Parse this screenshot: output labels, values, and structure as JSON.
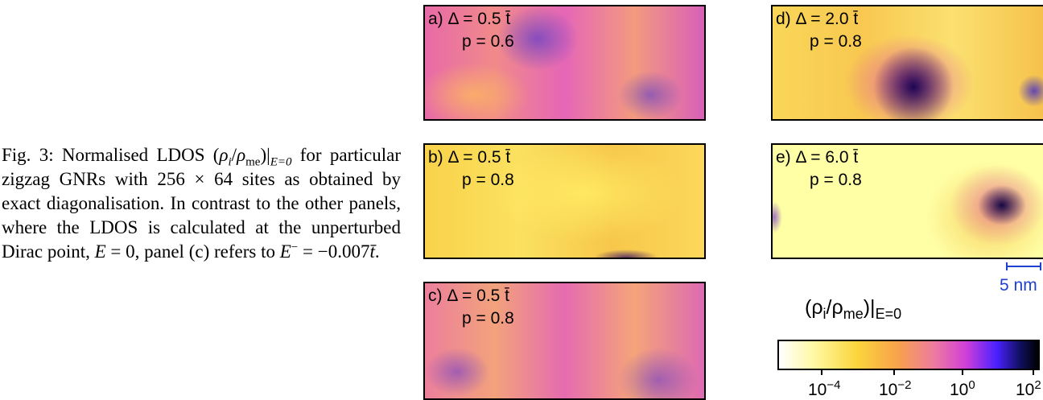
{
  "caption": {
    "parts": [
      "Fig. 3: Normalised LDOS (",
      "ρ",
      "i",
      "/",
      "ρ",
      "me",
      ")|",
      "E=0",
      " for particular zigzag GNRs with 256 × 64 sites as obtained by exact diagonalisation. In contrast to the other panels, where the LDOS is calculated at the unperturbed Dirac point, ",
      "E",
      " = 0, panel (c) refers to ",
      "E",
      "−",
      " = −0.007",
      "t̄",
      "."
    ]
  },
  "panels": [
    {
      "label": "a)",
      "delta": "Δ = 0.5 t̄",
      "p": "p = 0.6"
    },
    {
      "label": "b)",
      "delta": "Δ = 0.5 t̄",
      "p": "p = 0.8"
    },
    {
      "label": "c)",
      "delta": "Δ = 0.5 t̄",
      "p": "p = 0.8"
    },
    {
      "label": "d)",
      "delta": "Δ = 2.0 t̄",
      "p": "p = 0.8"
    },
    {
      "label": "e)",
      "delta": "Δ = 6.0 t̄",
      "p": "p = 0.8"
    }
  ],
  "scale_bar": "5 nm",
  "colorbar": {
    "title": {
      "open": "(ρ",
      "sub1": "i",
      "mid": "/ρ",
      "sub2": "me",
      "close": ")|",
      "sub3": "E=0"
    },
    "ticks": [
      {
        "base": "10",
        "exponent": "−4"
      },
      {
        "base": "10",
        "exponent": "−2"
      },
      {
        "base": "10",
        "exponent": "0"
      },
      {
        "base": "10",
        "exponent": "2"
      }
    ]
  }
}
